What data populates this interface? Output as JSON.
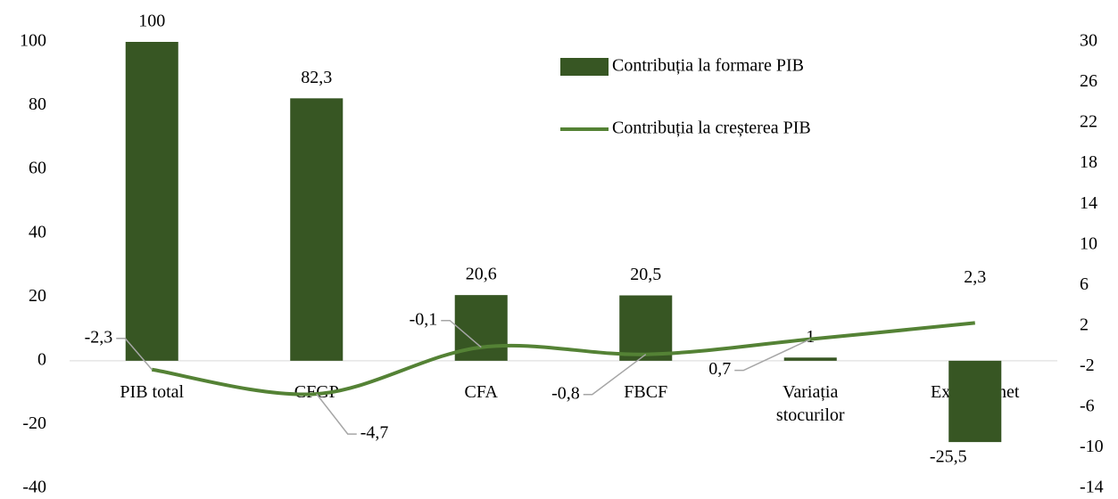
{
  "chart_data": {
    "type": "combo",
    "categories": [
      "PIB total",
      "CFGP",
      "CFA",
      "FBCF",
      "Variația stocurilor",
      "Exportul net"
    ],
    "series": [
      {
        "name": "Contribuția la formare PIB",
        "type": "bar",
        "color": "#375623",
        "values": [
          100,
          82.3,
          20.6,
          20.5,
          1,
          -25.5
        ],
        "value_labels": [
          "100",
          "82,3",
          "20,6",
          "20,5",
          "1",
          "-25,5"
        ]
      },
      {
        "name": "Contribuția la creșterea PIB",
        "type": "line",
        "axis": "y2",
        "color": "#548235",
        "values": [
          -2.3,
          -4.7,
          -0.1,
          -0.8,
          0.7,
          2.3
        ],
        "value_labels": [
          "-2,3",
          "-4,7",
          "-0,1",
          "-0,8",
          "0,7",
          "2,3"
        ]
      }
    ],
    "ylim": [
      -40,
      100
    ],
    "yticks": [
      -40,
      -20,
      0,
      20,
      40,
      60,
      80,
      100
    ],
    "y2lim": [
      -14,
      30
    ],
    "y2ticks": [
      -14,
      -10,
      -6,
      -2,
      2,
      6,
      10,
      14,
      18,
      22,
      26,
      30
    ],
    "grid": false
  }
}
